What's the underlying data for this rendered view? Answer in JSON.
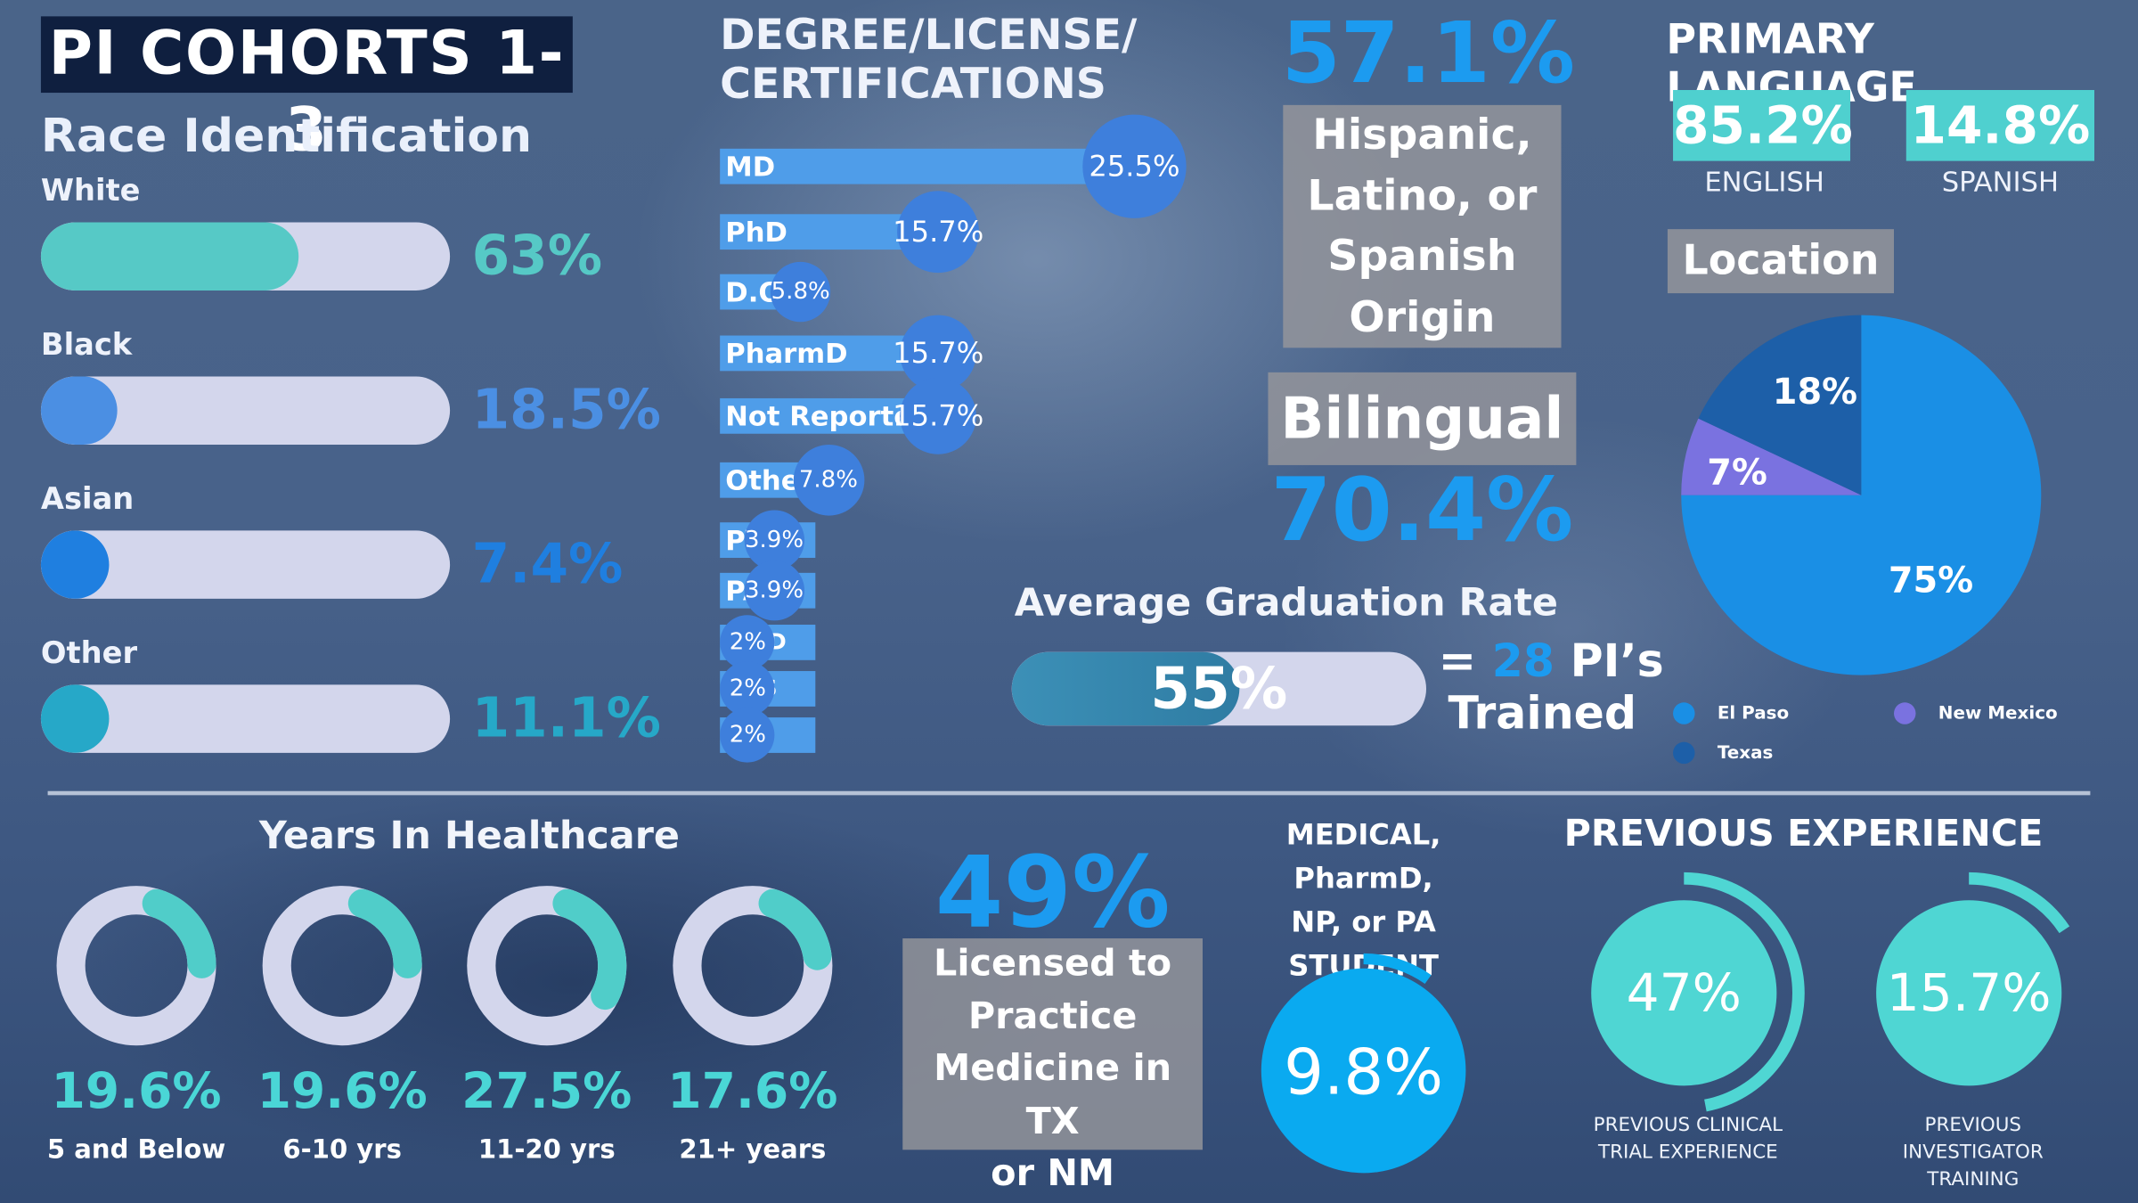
{
  "title": "PI COHORTS 1-3",
  "race": {
    "heading": "Race Identification",
    "items": [
      {
        "label": "White",
        "value": "63%",
        "fraction": 0.63,
        "color": "#56c9c6"
      },
      {
        "label": "Black",
        "value": "18.5%",
        "fraction": 0.185,
        "color": "#4b8fe3"
      },
      {
        "label": "Asian",
        "value": "7.4%",
        "fraction": 0.074,
        "color": "#1f7fe0"
      },
      {
        "label": "Other",
        "value": "11.1%",
        "fraction": 0.111,
        "color": "#26a8c8"
      }
    ]
  },
  "degrees": {
    "heading": [
      "DEGREE/LICENSE/",
      "CERTIFICATIONS"
    ],
    "items": [
      {
        "label": "MD",
        "value": "25.5%",
        "pct": 25.5
      },
      {
        "label": "PhD",
        "value": "15.7%",
        "pct": 15.7
      },
      {
        "label": "D.O.",
        "value": "5.8%",
        "pct": 5.8
      },
      {
        "label": "PharmD",
        "value": "15.7%",
        "pct": 15.7
      },
      {
        "label": "Not Reported",
        "value": "15.7%",
        "pct": 15.7
      },
      {
        "label": "Other",
        "value": "7.8%",
        "pct": 7.8
      },
      {
        "label": "PT",
        "value": "3.9%",
        "pct": 3.9
      },
      {
        "label": "PA",
        "value": "3.9%",
        "pct": 3.9
      },
      {
        "label": "PsyD",
        "value": "2%",
        "pct": 2
      },
      {
        "label": "DDS",
        "value": "2%",
        "pct": 2
      },
      {
        "label": "N/A",
        "value": "2%",
        "pct": 2
      }
    ]
  },
  "hispanic": {
    "value": "57.1%",
    "label_lines": [
      "Hispanic,",
      "Latino, or",
      "Spanish",
      "Origin"
    ]
  },
  "bilingual": {
    "label": "Bilingual",
    "value": "70.4%"
  },
  "graduation": {
    "heading": "Average Graduation Rate",
    "value": "55%",
    "fraction": 0.55,
    "eq": "=",
    "count": "28",
    "suffix": "PI’s",
    "line2": "Trained"
  },
  "language": {
    "heading": "PRIMARY LANGUAGE",
    "items": [
      {
        "value": "85.2%",
        "label": "ENGLISH"
      },
      {
        "value": "14.8%",
        "label": "SPANISH"
      }
    ]
  },
  "location": {
    "heading": "Location",
    "legend": [
      {
        "label": "El Paso",
        "color": "#1a8fe5"
      },
      {
        "label": "New Mexico",
        "color": "#7a72e0"
      },
      {
        "label": "Texas",
        "color": "#1d5fa8"
      }
    ]
  },
  "chart_data": {
    "type": "pie",
    "categories": [
      "El Paso",
      "Texas",
      "New Mexico"
    ],
    "values": [
      75,
      18,
      7
    ],
    "labels": [
      "75%",
      "18%",
      "7%"
    ],
    "colors": [
      "#1a8fe5",
      "#1d5fa8",
      "#7a72e0"
    ]
  },
  "years": {
    "heading": "Years In Healthcare",
    "items": [
      {
        "value": "19.6%",
        "label": "5 and Below",
        "fraction": 0.196
      },
      {
        "value": "19.6%",
        "label": "6-10 yrs",
        "fraction": 0.196
      },
      {
        "value": "27.5%",
        "label": "11-20 yrs",
        "fraction": 0.275
      },
      {
        "value": "17.6%",
        "label": "21+ years",
        "fraction": 0.176
      }
    ]
  },
  "licensed": {
    "value": "49%",
    "label_lines": [
      "Licensed to",
      "Practice",
      "Medicine in TX",
      "or NM"
    ]
  },
  "student": {
    "heading_lines": [
      "MEDICAL, PharmD,",
      "NP, or PA",
      "STUDENT"
    ],
    "value": "9.8%",
    "fraction": 0.098
  },
  "experience": {
    "heading": "PREVIOUS EXPERIENCE",
    "items": [
      {
        "value": "47%",
        "fraction": 0.47,
        "label_lines": [
          "PREVIOUS CLINICAL",
          "TRIAL EXPERIENCE"
        ]
      },
      {
        "value": "15.7%",
        "fraction": 0.157,
        "label_lines": [
          "PREVIOUS INVESTIGATOR",
          "TRAINING"
        ]
      }
    ]
  }
}
